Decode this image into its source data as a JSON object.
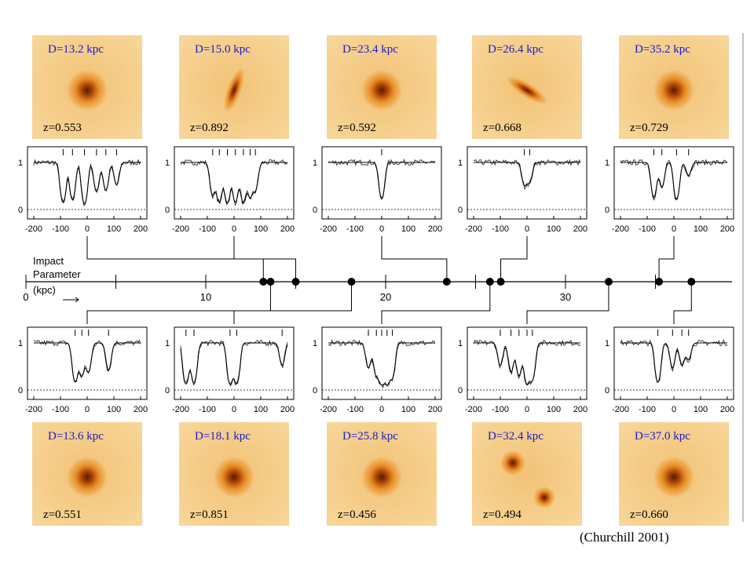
{
  "figure": {
    "credit": "(Churchill 2001)",
    "axis": {
      "label_lines": [
        "Impact",
        "Parameter",
        "(kpc)"
      ],
      "min_kpc": 0,
      "max_kpc": 39,
      "ticks": [
        {
          "value": 0,
          "label": "0"
        },
        {
          "value": 10,
          "label": "10"
        },
        {
          "value": 20,
          "label": "20"
        },
        {
          "value": 30,
          "label": "30"
        }
      ],
      "markers": [
        13.2,
        13.6,
        15.0,
        18.1,
        23.4,
        25.8,
        26.4,
        32.4,
        35.2,
        37.0
      ]
    },
    "spectrum_axes": {
      "x_ticks": [
        "-200",
        "-100",
        "0",
        "100",
        "200"
      ],
      "y_ticks": [
        "1",
        "0"
      ],
      "x_range": [
        -200,
        200
      ],
      "y_range": [
        0,
        1
      ]
    },
    "colors": {
      "galaxy_bg": "#f7d79a",
      "galaxy_glow": "#e8861a",
      "galaxy_core": "#5a1a00",
      "label_blue": "#1a1ad0"
    },
    "galaxies": [
      {
        "id": "g1",
        "row": "top",
        "col": 0,
        "D": "D=13.2 kpc",
        "z": "z=0.553",
        "kpc": 13.2,
        "shape": "round",
        "components": [
          [
            -90,
            0.88
          ],
          [
            -55,
            0.72
          ],
          [
            -10,
            0.96
          ],
          [
            35,
            0.45
          ],
          [
            70,
            0.42
          ],
          [
            110,
            0.3
          ]
        ]
      },
      {
        "id": "g2",
        "row": "top",
        "col": 1,
        "D": "D=15.0 kpc",
        "z": "z=0.892",
        "kpc": 15.0,
        "shape": "edge",
        "components": [
          [
            -80,
            0.55
          ],
          [
            -55,
            0.85
          ],
          [
            -25,
            0.9
          ],
          [
            5,
            0.85
          ],
          [
            35,
            0.9
          ],
          [
            60,
            0.6
          ],
          [
            80,
            0.4
          ]
        ]
      },
      {
        "id": "g3",
        "row": "top",
        "col": 2,
        "D": "D=23.4 kpc",
        "z": "z=0.592",
        "kpc": 23.4,
        "shape": "round",
        "components": [
          [
            0,
            0.68
          ]
        ]
      },
      {
        "id": "g4",
        "row": "top",
        "col": 3,
        "D": "D=26.4 kpc",
        "z": "z=0.668",
        "kpc": 26.4,
        "shape": "edge",
        "components": [
          [
            -10,
            0.3
          ],
          [
            10,
            0.25
          ]
        ]
      },
      {
        "id": "g5",
        "row": "top",
        "col": 4,
        "D": "D=35.2 kpc",
        "z": "z=0.729",
        "kpc": 35.2,
        "shape": "round",
        "components": [
          [
            -75,
            0.62
          ],
          [
            -45,
            0.35
          ],
          [
            10,
            0.72
          ],
          [
            55,
            0.15
          ]
        ]
      },
      {
        "id": "g6",
        "row": "bottom",
        "col": 0,
        "D": "D=13.6 kpc",
        "z": "z=0.551",
        "kpc": 13.6,
        "shape": "round",
        "components": [
          [
            -45,
            0.8
          ],
          [
            -20,
            0.55
          ],
          [
            5,
            0.45
          ],
          [
            80,
            0.4
          ]
        ]
      },
      {
        "id": "g7",
        "row": "bottom",
        "col": 1,
        "D": "D=18.1 kpc",
        "z": "z=0.851",
        "kpc": 18.1,
        "shape": "round",
        "components": [
          [
            -180,
            0.95
          ],
          [
            -150,
            0.9
          ],
          [
            -15,
            0.95
          ],
          [
            10,
            0.92
          ],
          [
            180,
            0.3
          ]
        ]
      },
      {
        "id": "g8",
        "row": "bottom",
        "col": 2,
        "D": "D=25.8 kpc",
        "z": "z=0.456",
        "kpc": 25.8,
        "shape": "round",
        "components": [
          [
            -50,
            0.35
          ],
          [
            -20,
            0.55
          ],
          [
            0,
            0.95
          ],
          [
            20,
            0.92
          ],
          [
            40,
            0.6
          ]
        ]
      },
      {
        "id": "g9",
        "row": "bottom",
        "col": 3,
        "D": "D=32.4 kpc",
        "z": "z=0.494",
        "kpc": 32.4,
        "shape": "double",
        "components": [
          [
            -100,
            0.3
          ],
          [
            -60,
            0.45
          ],
          [
            -30,
            0.55
          ],
          [
            0,
            0.95
          ],
          [
            20,
            0.7
          ]
        ]
      },
      {
        "id": "g10",
        "row": "bottom",
        "col": 4,
        "D": "D=37.0 kpc",
        "z": "z=0.660",
        "kpc": 37.0,
        "shape": "round",
        "components": [
          [
            -60,
            0.82
          ],
          [
            -5,
            0.35
          ],
          [
            30,
            0.3
          ],
          [
            55,
            0.2
          ]
        ]
      }
    ]
  }
}
